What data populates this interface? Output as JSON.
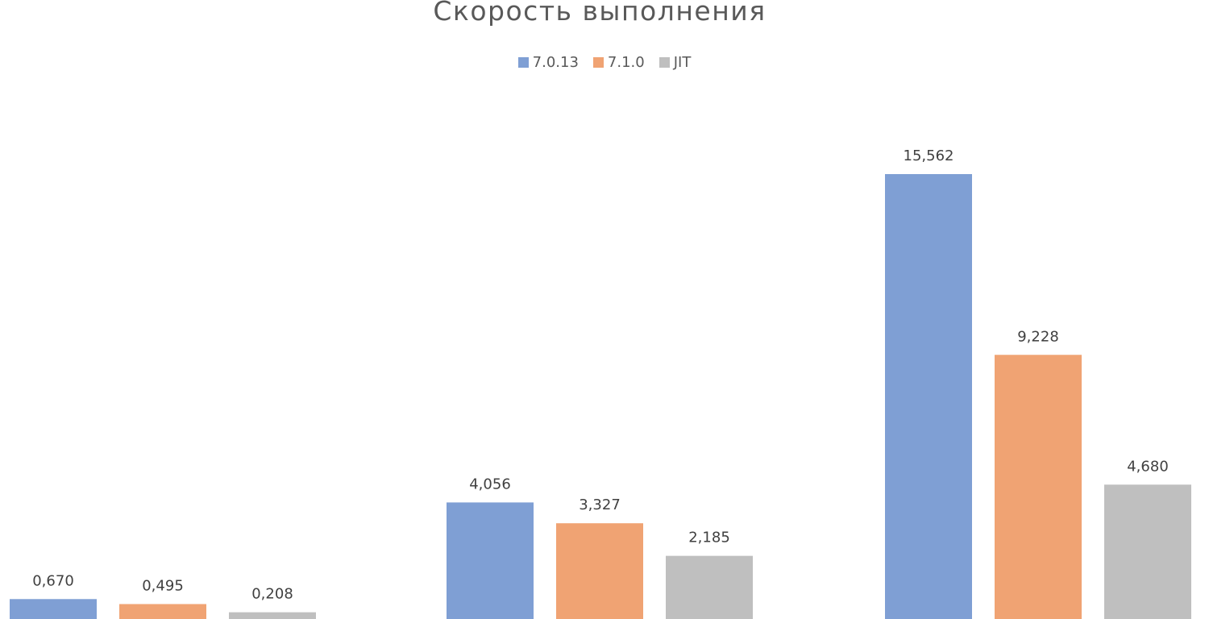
{
  "chart_data": {
    "type": "bar",
    "title": "Скорость выполнения",
    "categories": [
      "",
      "",
      ""
    ],
    "series": [
      {
        "name": "7.0.13",
        "values": [
          0.67,
          4.056,
          15.562
        ],
        "labels": [
          "0,670",
          "4,056",
          "15,562"
        ],
        "color": "#7f9fd4"
      },
      {
        "name": "7.1.0",
        "values": [
          0.495,
          3.327,
          9.228
        ],
        "labels": [
          "0,495",
          "3,327",
          "9,228"
        ],
        "color": "#f0a373"
      },
      {
        "name": "JIT",
        "values": [
          0.208,
          2.185,
          4.68
        ],
        "labels": [
          "0,208",
          "2,185",
          "4,680"
        ],
        "color": "#bfbfbf"
      }
    ],
    "xlabel": "",
    "ylabel": "",
    "ylim": [
      0,
      15.562
    ],
    "grid": false,
    "legend_position": "top"
  }
}
